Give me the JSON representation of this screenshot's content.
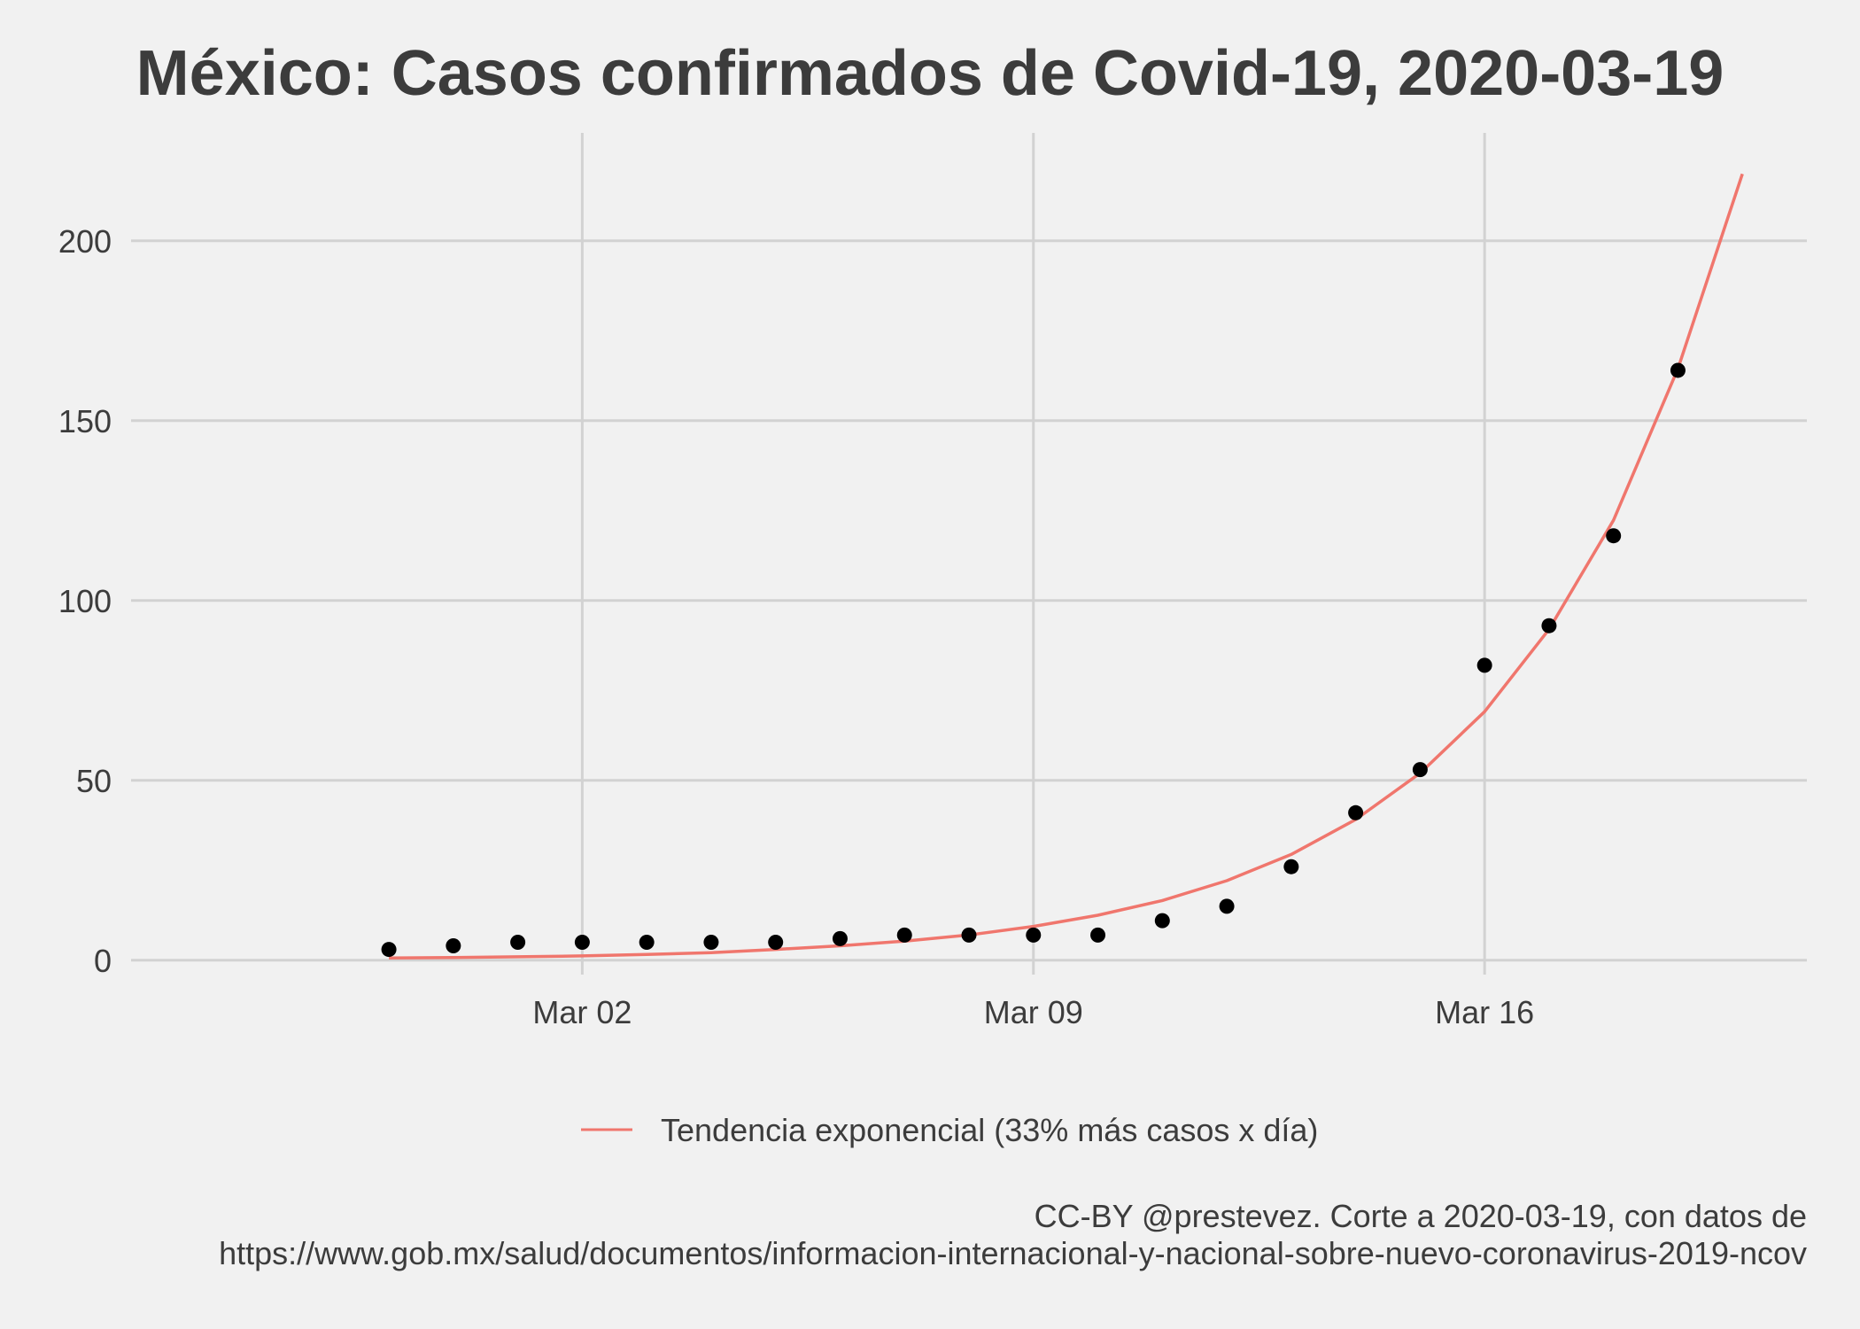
{
  "chart_data": {
    "type": "scatter",
    "title": "México: Casos confirmados de Covid-19, 2020-03-19",
    "xlabel": "",
    "ylabel": "",
    "x_axis": {
      "type": "date",
      "range": [
        "2020-02-24",
        "2020-03-21"
      ],
      "ticks": [
        "2020-03-02",
        "2020-03-09",
        "2020-03-16"
      ],
      "tick_labels": [
        "Mar 02",
        "Mar 09",
        "Mar 16"
      ]
    },
    "y_axis": {
      "range": [
        -4,
        230
      ],
      "ticks": [
        0,
        50,
        100,
        150,
        200
      ],
      "tick_labels": [
        "0",
        "50",
        "100",
        "150",
        "200"
      ]
    },
    "grid": true,
    "legend_position": "bottom",
    "series": [
      {
        "type": "scatter",
        "color": "#000000",
        "points": [
          {
            "x": "2020-02-28",
            "y": 3
          },
          {
            "x": "2020-02-29",
            "y": 4
          },
          {
            "x": "2020-03-01",
            "y": 5
          },
          {
            "x": "2020-03-02",
            "y": 5
          },
          {
            "x": "2020-03-03",
            "y": 5
          },
          {
            "x": "2020-03-04",
            "y": 5
          },
          {
            "x": "2020-03-05",
            "y": 5
          },
          {
            "x": "2020-03-06",
            "y": 6
          },
          {
            "x": "2020-03-07",
            "y": 7
          },
          {
            "x": "2020-03-08",
            "y": 7
          },
          {
            "x": "2020-03-09",
            "y": 7
          },
          {
            "x": "2020-03-10",
            "y": 7
          },
          {
            "x": "2020-03-11",
            "y": 11
          },
          {
            "x": "2020-03-12",
            "y": 15
          },
          {
            "x": "2020-03-13",
            "y": 26
          },
          {
            "x": "2020-03-14",
            "y": 41
          },
          {
            "x": "2020-03-15",
            "y": 53
          },
          {
            "x": "2020-03-16",
            "y": 82
          },
          {
            "x": "2020-03-17",
            "y": 93
          },
          {
            "x": "2020-03-18",
            "y": 118
          },
          {
            "x": "2020-03-19",
            "y": 164
          }
        ]
      },
      {
        "type": "line",
        "name": "Tendencia exponencial (33% más casos x día)",
        "color": "#f0766d",
        "points": [
          {
            "x": "2020-02-28",
            "y": 0.6
          },
          {
            "x": "2020-02-29",
            "y": 0.75
          },
          {
            "x": "2020-03-01",
            "y": 0.95
          },
          {
            "x": "2020-03-02",
            "y": 1.2
          },
          {
            "x": "2020-03-03",
            "y": 1.6
          },
          {
            "x": "2020-03-04",
            "y": 2.1
          },
          {
            "x": "2020-03-05",
            "y": 3.0
          },
          {
            "x": "2020-03-06",
            "y": 4.0
          },
          {
            "x": "2020-03-07",
            "y": 5.3
          },
          {
            "x": "2020-03-08",
            "y": 7.0
          },
          {
            "x": "2020-03-09",
            "y": 9.4
          },
          {
            "x": "2020-03-10",
            "y": 12.5
          },
          {
            "x": "2020-03-11",
            "y": 16.6
          },
          {
            "x": "2020-03-12",
            "y": 22.1
          },
          {
            "x": "2020-03-13",
            "y": 29.4
          },
          {
            "x": "2020-03-14",
            "y": 39.1
          },
          {
            "x": "2020-03-15",
            "y": 52.0
          },
          {
            "x": "2020-03-16",
            "y": 69.1
          },
          {
            "x": "2020-03-17",
            "y": 92.0
          },
          {
            "x": "2020-03-18",
            "y": 122.3
          },
          {
            "x": "2020-03-19",
            "y": 164.5
          },
          {
            "x": "2020-03-20",
            "y": 218.6
          }
        ]
      }
    ],
    "caption": [
      "CC-BY @prestevez. Corte a 2020-03-19, con datos de ",
      "https://www.gob.mx/salud/documentos/informacion-internacional-y-nacional-sobre-nuevo-coronavirus-2019-ncov"
    ]
  },
  "colors": {
    "background": "#f1f1f1",
    "grid": "#d2d2d2",
    "text": "#3c3c3c",
    "points": "#000000",
    "trend": "#f0766d"
  }
}
